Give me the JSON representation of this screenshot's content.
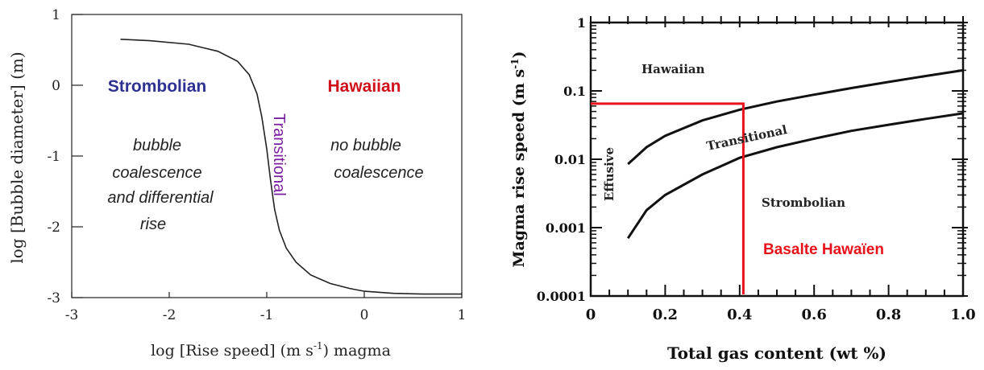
{
  "chart_data": [
    {
      "type": "line",
      "ylabel": "log [Bubble diameter] (m)",
      "xlabel_prefix": "log [Rise speed] (m s",
      "xlabel_exp": "-1",
      "xlabel_suffix": ")  magma",
      "xlim": [
        -3,
        1
      ],
      "ylim": [
        -3,
        1
      ],
      "x_ticks": [
        "-3",
        "-2",
        "-1",
        "0",
        "1"
      ],
      "y_ticks": [
        "1",
        "0",
        "-1",
        "-2",
        "-3"
      ],
      "grid": false,
      "series": [
        {
          "x": [
            -2.5,
            -2.2,
            -1.8,
            -1.5,
            -1.3,
            -1.18,
            -1.1,
            -1.05,
            -1.0,
            -0.96,
            -0.92,
            -0.87,
            -0.8,
            -0.7,
            -0.55,
            -0.35,
            -0.15,
            0.0,
            0.3,
            0.6,
            1.0
          ],
          "y": [
            0.65,
            0.63,
            0.58,
            0.48,
            0.34,
            0.15,
            -0.12,
            -0.45,
            -0.9,
            -1.35,
            -1.75,
            -2.05,
            -2.3,
            -2.5,
            -2.68,
            -2.8,
            -2.87,
            -2.91,
            -2.94,
            -2.95,
            -2.95
          ]
        }
      ],
      "annotations": {
        "strombolian": "Strombolian",
        "hawaiian": "Hawaiian",
        "transitional": "Transitional",
        "bubble_line1": "bubble",
        "bubble_line2": "coalescence",
        "bubble_line3": "and  differential",
        "bubble_line4": "rise",
        "nobubble_line1": "no bubble",
        "nobubble_line2": "coalescence"
      },
      "colors": {
        "strombolian": "#2e3192",
        "hawaiian": "#d0111b",
        "transitional": "#7b1fa2"
      }
    },
    {
      "type": "line",
      "ylabel_prefix": "Magma rise speed (m s",
      "ylabel_exp": "-1",
      "ylabel_suffix": ")",
      "xlabel": "Total gas content (wt %)",
      "xlim": [
        0,
        1.0
      ],
      "ylim": [
        0.0001,
        1
      ],
      "y_scale": "log",
      "x_ticks": [
        "0",
        "0.2",
        "0.4",
        "0.6",
        "0.8",
        "1.0"
      ],
      "y_ticks": [
        "1",
        "0.1",
        "0.01",
        "0.001",
        "0.0001"
      ],
      "grid": false,
      "series": [
        {
          "x": [
            0.1,
            0.15,
            0.2,
            0.3,
            0.4,
            0.5,
            0.6,
            0.7,
            0.8,
            0.9,
            1.0
          ],
          "y": [
            0.0085,
            0.015,
            0.022,
            0.037,
            0.053,
            0.07,
            0.088,
            0.11,
            0.135,
            0.165,
            0.2
          ]
        },
        {
          "x": [
            0.1,
            0.15,
            0.2,
            0.3,
            0.4,
            0.5,
            0.6,
            0.7,
            0.8,
            0.9,
            1.0
          ],
          "y": [
            0.0007,
            0.0018,
            0.003,
            0.006,
            0.0105,
            0.015,
            0.02,
            0.026,
            0.032,
            0.039,
            0.047
          ]
        }
      ],
      "marker": {
        "x": 0.41,
        "y": 0.065,
        "label": "Basalte Hawaïen",
        "color": "#e8121a"
      },
      "annotations": {
        "hawaiian": "Hawaiian",
        "transitional": "Transitional",
        "strombolian": "Strombolian",
        "effusive": "Effusive"
      }
    }
  ]
}
